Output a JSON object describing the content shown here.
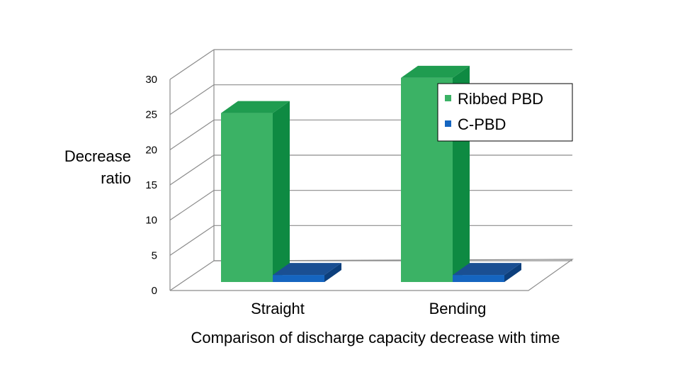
{
  "chart_data": {
    "type": "bar",
    "title": "",
    "xlabel": "Comparison of discharge capacity decrease with time",
    "ylabel": [
      "Decrease",
      "ratio"
    ],
    "categories": [
      "Straight",
      "Bending"
    ],
    "series": [
      {
        "name": "Ribbed PBD",
        "values": [
          24,
          29
        ],
        "color": "#3bb265",
        "side_color": "#0e8a42",
        "top_color": "#1f9c50"
      },
      {
        "name": "C-PBD",
        "values": [
          1,
          1
        ],
        "color": "#1565c0",
        "side_color": "#0d3f7c",
        "top_color": "#1a4f93"
      }
    ],
    "ylim": [
      0,
      30
    ],
    "yticks": [
      0,
      5,
      10,
      15,
      20,
      25,
      30
    ],
    "grid": true,
    "legend": "top-right"
  }
}
